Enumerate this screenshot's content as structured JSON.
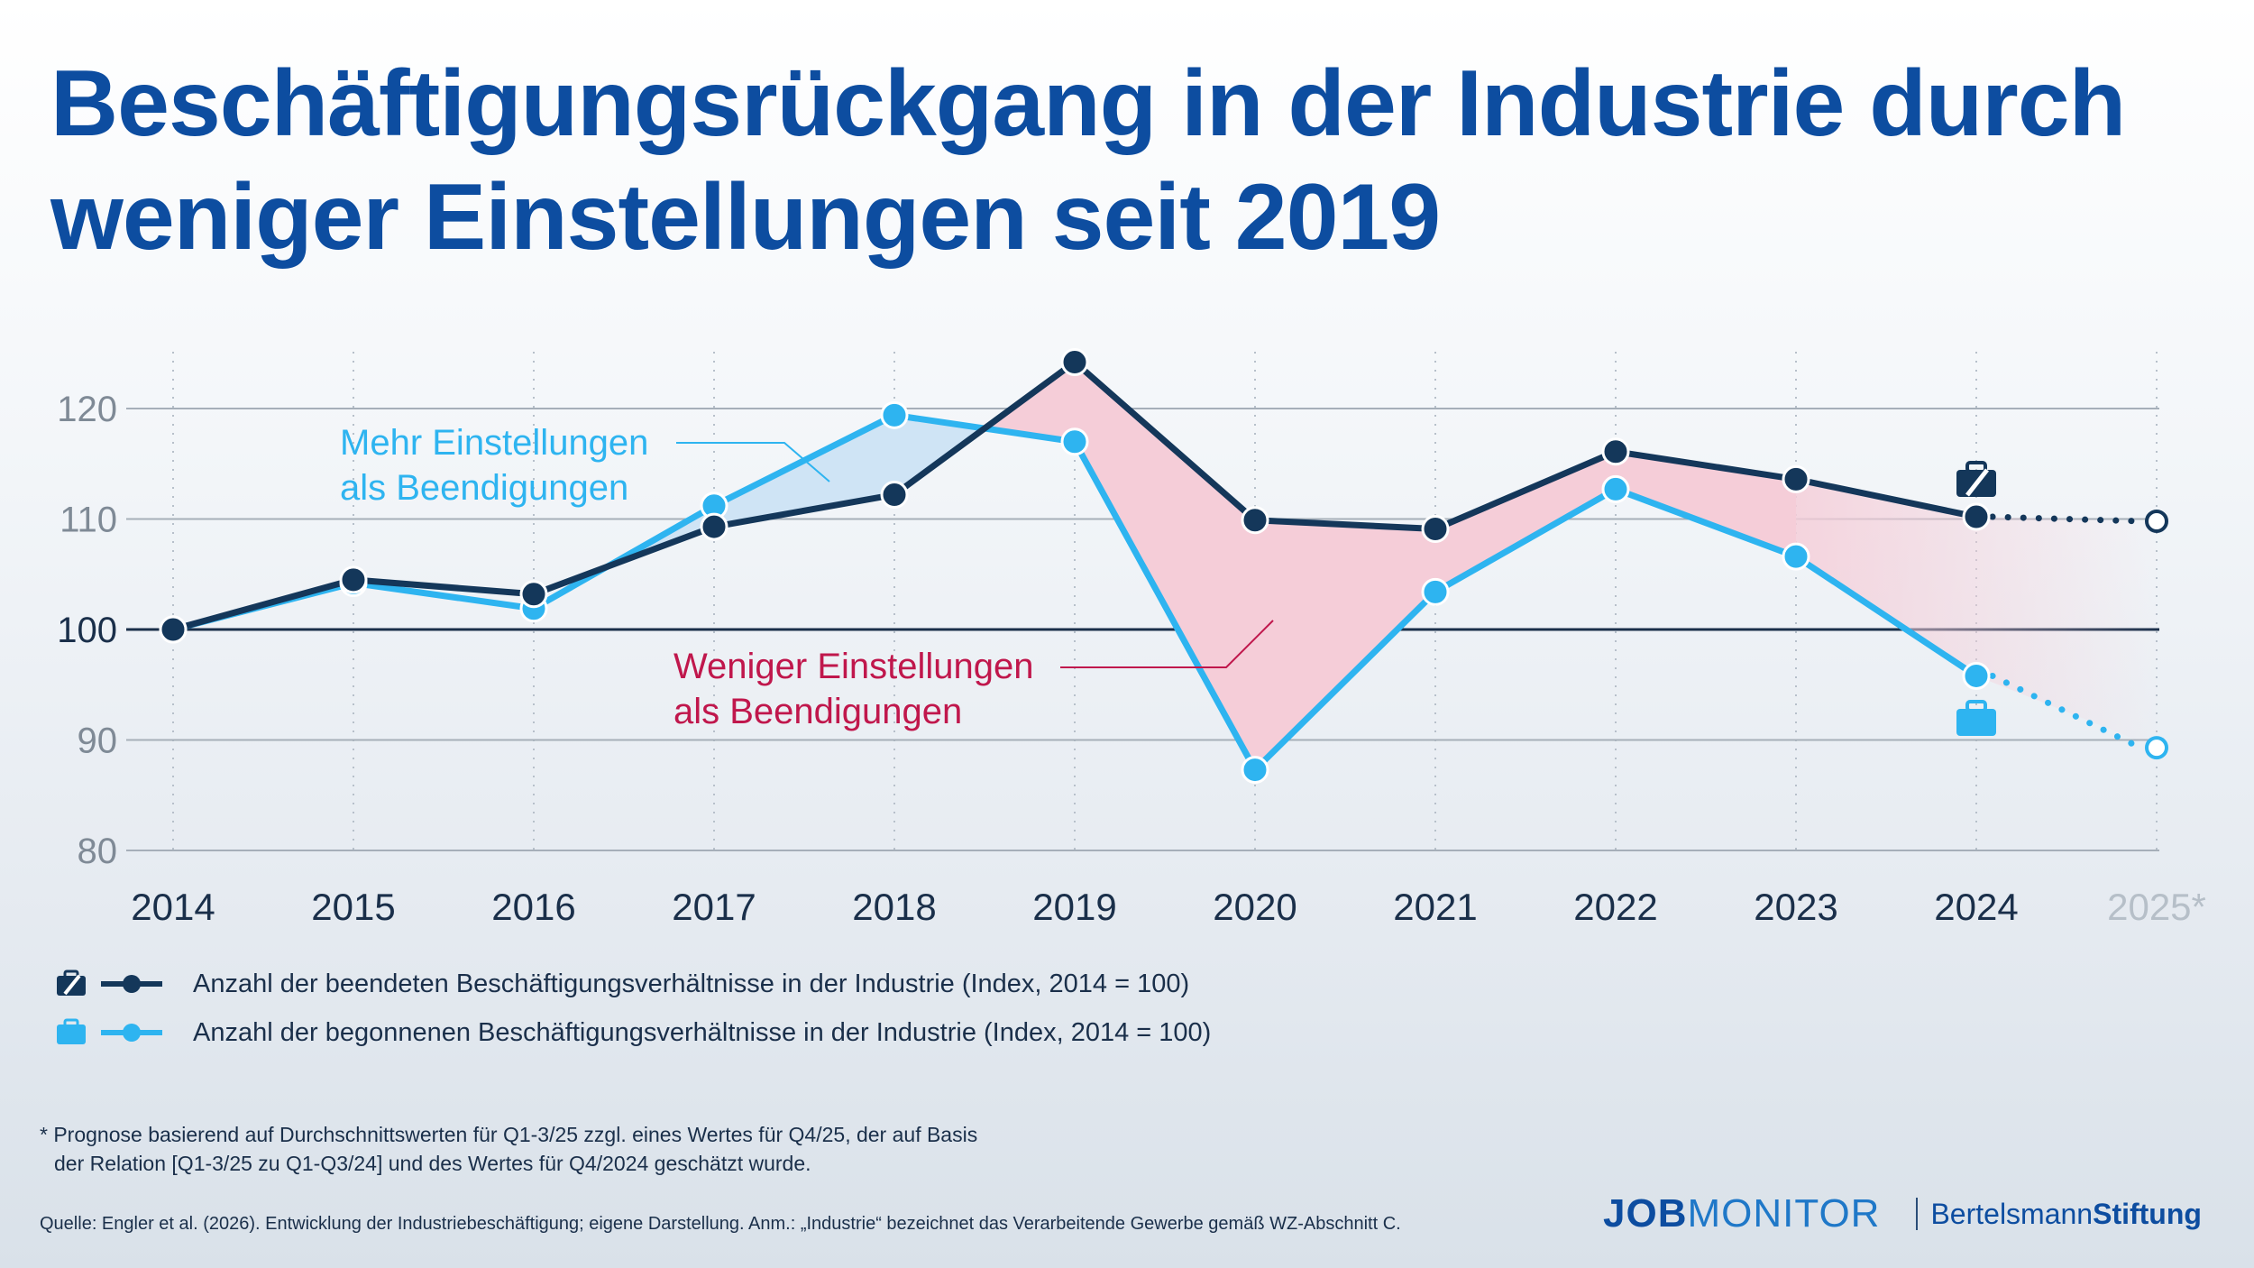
{
  "title": "Beschäftigungsrückgang in der Industrie durch weniger Einstellungen seit 2019",
  "chart_data": {
    "type": "line",
    "categories": [
      "2014",
      "2015",
      "2016",
      "2017",
      "2018",
      "2019",
      "2020",
      "2021",
      "2022",
      "2023",
      "2024",
      "2025*"
    ],
    "x": [
      2014,
      2015,
      2016,
      2017,
      2018,
      2019,
      2020,
      2021,
      2022,
      2023,
      2024,
      2025
    ],
    "series": [
      {
        "name": "Anzahl der beendeten Beschäftigungsverhältnisse in der Industrie (Index, 2014 = 100)",
        "values": [
          100,
          104.5,
          103.2,
          109.3,
          112.2,
          124.2,
          109.9,
          109.1,
          116.1,
          113.6,
          110.2,
          109.8
        ],
        "color": "#14375a",
        "icon": "briefcase-slash-icon"
      },
      {
        "name": "Anzahl der begonnenen Beschäftigungsverhältnisse in der Industrie (Index, 2014 = 100)",
        "values": [
          100,
          104.2,
          101.9,
          111.2,
          119.4,
          117.0,
          87.3,
          103.4,
          112.7,
          106.6,
          95.8,
          89.3
        ],
        "color": "#2eb4f0",
        "icon": "briefcase-icon"
      }
    ],
    "forecast_from": "2024",
    "y_ticks": [
      80,
      90,
      100,
      110,
      120
    ],
    "ylim": [
      78,
      126
    ],
    "grid": true,
    "annotations": [
      {
        "lines": [
          "Mehr Einstellungen",
          "als Beendigungen"
        ],
        "color": "#2eb4f0"
      },
      {
        "lines": [
          "Weniger Einstellungen",
          "als Beendigungen"
        ],
        "color": "#c0174c"
      }
    ],
    "fill_colors": {
      "more": "#cfe4f5",
      "less": "#f5cdd8"
    }
  },
  "legend": [
    {
      "label": "Anzahl der beendeten Beschäftigungsverhältnisse in der Industrie (Index, 2014 = 100)",
      "icon": "briefcase-slash-icon"
    },
    {
      "label": "Anzahl der begonnenen Beschäftigungsverhältnisse in der Industrie (Index, 2014 = 100)",
      "icon": "briefcase-icon"
    }
  ],
  "footnote": {
    "line1": "* Prognose basierend auf Durchschnittswerten für Q1-3/25 zzgl. eines Wertes für Q4/25, der auf Basis",
    "line2": "der Relation [Q1-3/25 zu Q1-Q3/24] und des Wertes für Q4/2024 geschätzt wurde."
  },
  "source": "Quelle: Engler et al. (2026). Entwicklung der Industriebeschäftigung; eigene Darstellung. Anm.: „Industrie“ bezeichnet das Verarbeitende Gewerbe gemäß WZ-Abschnitt C.",
  "brand": {
    "job": "JOB",
    "monitor": "MONITOR",
    "org1": "Bertelsmann",
    "org2": "Stiftung"
  }
}
